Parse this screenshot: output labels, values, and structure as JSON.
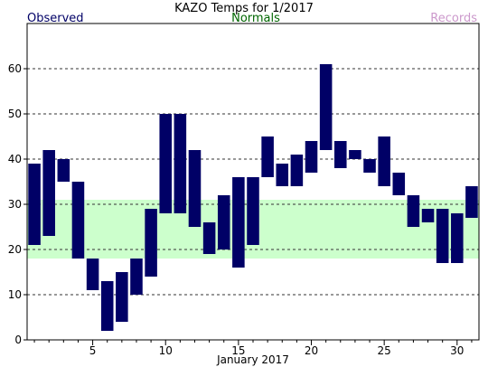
{
  "chart_data": {
    "type": "bar",
    "title": "KAZO Temps for 1/2017",
    "xlabel": "January 2017",
    "ylabel": "",
    "legend": [
      {
        "name": "Observed",
        "color": "#000066"
      },
      {
        "name": "Normals",
        "color": "#006600"
      },
      {
        "name": "Records",
        "color": "#cc99cc"
      }
    ],
    "legend_placement": "top",
    "xlim": [
      0.5,
      31.5
    ],
    "ylim": [
      0,
      70
    ],
    "x_ticks": [
      5,
      10,
      15,
      20,
      25,
      30
    ],
    "y_ticks": [
      0,
      10,
      20,
      30,
      40,
      50,
      60
    ],
    "grid": "horizontal-dashed",
    "bar_color": "#000066",
    "normals_color": "#ccffcc",
    "normals_band": {
      "low": 18,
      "high": 31
    },
    "series": [
      {
        "name": "Observed",
        "days": [
          1,
          2,
          3,
          4,
          5,
          6,
          7,
          8,
          9,
          10,
          11,
          12,
          13,
          14,
          15,
          16,
          17,
          18,
          19,
          20,
          21,
          22,
          23,
          24,
          25,
          26,
          27,
          28,
          29,
          30,
          31
        ],
        "low": [
          21,
          23,
          35,
          18,
          11,
          2,
          4,
          10,
          14,
          28,
          28,
          25,
          19,
          20,
          16,
          21,
          36,
          34,
          34,
          37,
          42,
          38,
          40,
          37,
          34,
          32,
          25,
          26,
          17,
          17,
          27
        ],
        "high": [
          39,
          42,
          40,
          35,
          18,
          13,
          15,
          18,
          29,
          50,
          50,
          42,
          26,
          32,
          36,
          36,
          45,
          39,
          41,
          44,
          61,
          44,
          42,
          40,
          45,
          37,
          32,
          29,
          29,
          28,
          34
        ]
      }
    ]
  }
}
